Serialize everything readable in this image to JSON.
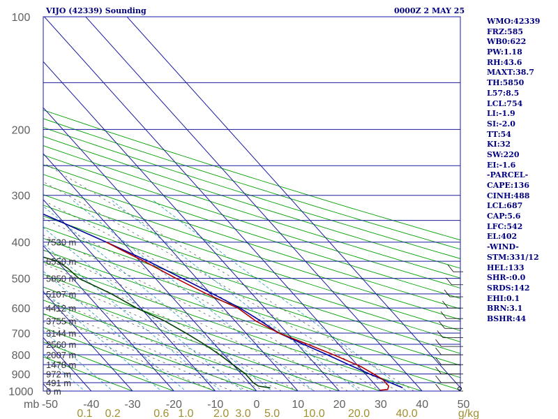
{
  "header": {
    "station": "VIJO (42339) Sounding",
    "time": "0000Z  2 MAY 25"
  },
  "indices": [
    "WMO:42339",
    "FRZ:585",
    "WB0:622",
    "PW:1.18",
    "RH:43.6",
    "MAXT:38.7",
    "TH:5850",
    "L57:8.5",
    "LCL:754",
    "LI:-1.9",
    "SI:-2.0",
    "TT:54",
    "KI:32",
    "SW:220",
    "EI:-1.6",
    "-PARCEL-",
    "CAPE:136",
    "CINH:488",
    "LCL:687",
    "CAP:5.6",
    "LFC:542",
    "EL:402",
    "-WIND-",
    "STM:331/12",
    "HEL:133",
    "SHR-:0.0",
    "SRDS:142",
    "EHI:0.1",
    "BRN:3.1",
    "BSHR:44"
  ],
  "chart_data": {
    "type": "line",
    "title": "VIJO (42339) Sounding",
    "x_unit_label": "mb",
    "pressure_ticks": [
      100,
      200,
      300,
      400,
      500,
      600,
      700,
      800,
      900,
      1000
    ],
    "temperature_ticks": [
      -50,
      -40,
      -30,
      -20,
      -10,
      0,
      10,
      20,
      30,
      40,
      50
    ],
    "temperature_tick_labels": [
      "-50",
      "-40",
      "-30",
      "-20",
      "-10",
      "0",
      "10",
      "20",
      "30",
      "40",
      "50"
    ],
    "mixing_ratio_labels": [
      {
        "label": "0.1",
        "value": 0.1
      },
      {
        "label": "0.2",
        "value": 0.2
      },
      {
        "label": "0.6",
        "value": 0.6
      },
      {
        "label": "1.0",
        "value": 1.0
      },
      {
        "label": "2.0",
        "value": 2.0
      },
      {
        "label": "3.0",
        "value": 3.0
      },
      {
        "label": "5.0",
        "value": 5.0
      },
      {
        "label": "10.0",
        "value": 10.0
      },
      {
        "label": "20.0",
        "value": 20.0
      },
      {
        "label": "40.0",
        "value": 40.0
      }
    ],
    "mixing_ratio_unit": "g/kg",
    "height_labels": [
      {
        "text": "7530 m",
        "p": 400
      },
      {
        "text": "6550 m",
        "p": 450
      },
      {
        "text": "5850 m",
        "p": 500
      },
      {
        "text": "5107 m",
        "p": 550
      },
      {
        "text": "4412 m",
        "p": 600
      },
      {
        "text": "3755 m",
        "p": 650
      },
      {
        "text": "3144 m",
        "p": 700
      },
      {
        "text": "2560 m",
        "p": 750
      },
      {
        "text": "2007 m",
        "p": 800
      },
      {
        "text": "1478 m",
        "p": 850
      },
      {
        "text": "972 m",
        "p": 900
      },
      {
        "text": "491 m",
        "p": 950
      },
      {
        "text": "0 m",
        "p": 1000
      }
    ],
    "series": [
      {
        "kind": "parcel",
        "color": "#0000a0",
        "points": [
          [
            980,
            36.0
          ],
          [
            900,
            31.0
          ],
          [
            850,
            28.0
          ],
          [
            800,
            25.0
          ],
          [
            750,
            21.5
          ],
          [
            700,
            18.0
          ],
          [
            650,
            16.2
          ],
          [
            600,
            14.0
          ],
          [
            550,
            10.5
          ],
          [
            500,
            6.5
          ],
          [
            450,
            2.0
          ],
          [
            400,
            -4.0
          ],
          [
            350,
            -11.0
          ],
          [
            300,
            -19.5
          ],
          [
            250,
            -30.0
          ],
          [
            200,
            -43.0
          ],
          [
            150,
            -59.0
          ],
          [
            105,
            -81.0
          ]
        ]
      },
      {
        "kind": "temperature",
        "color": "#b00000",
        "points": [
          [
            995,
            30.0
          ],
          [
            990,
            32.0
          ],
          [
            970,
            33.0
          ],
          [
            930,
            33.0
          ],
          [
            900,
            32.0
          ],
          [
            860,
            30.5
          ],
          [
            800,
            26.5
          ],
          [
            750,
            22.5
          ],
          [
            700,
            18.0
          ],
          [
            650,
            15.0
          ],
          [
            600,
            13.5
          ],
          [
            550,
            9.0
          ],
          [
            500,
            5.0
          ],
          [
            450,
            1.0
          ],
          [
            420,
            -2.0
          ],
          [
            400,
            -4.0
          ]
        ]
      },
      {
        "kind": "dewpoint",
        "color": "#004000",
        "points": [
          [
            980,
            4.0
          ],
          [
            970,
            1.5
          ],
          [
            950,
            1.0
          ],
          [
            900,
            1.0
          ],
          [
            850,
            0.0
          ],
          [
            800,
            -1.0
          ],
          [
            750,
            -2.5
          ],
          [
            700,
            -4.5
          ],
          [
            650,
            -7.0
          ],
          [
            600,
            -11.0
          ],
          [
            550,
            -14.0
          ],
          [
            500,
            -18.5
          ],
          [
            470,
            -19.0
          ],
          [
            450,
            -20.0
          ],
          [
            430,
            -24.5
          ],
          [
            400,
            -31.0
          ],
          [
            370,
            -29.0
          ]
        ]
      }
    ],
    "colors": {
      "isobar": "#1a1aa0",
      "isotherm": "#1a1aa0",
      "dry_adiabat": "#00a000",
      "moist_adiabat": "#606060",
      "mixing_ratio": "#30a0c0",
      "labels": "#a09030",
      "axis_text": "#606060"
    }
  }
}
